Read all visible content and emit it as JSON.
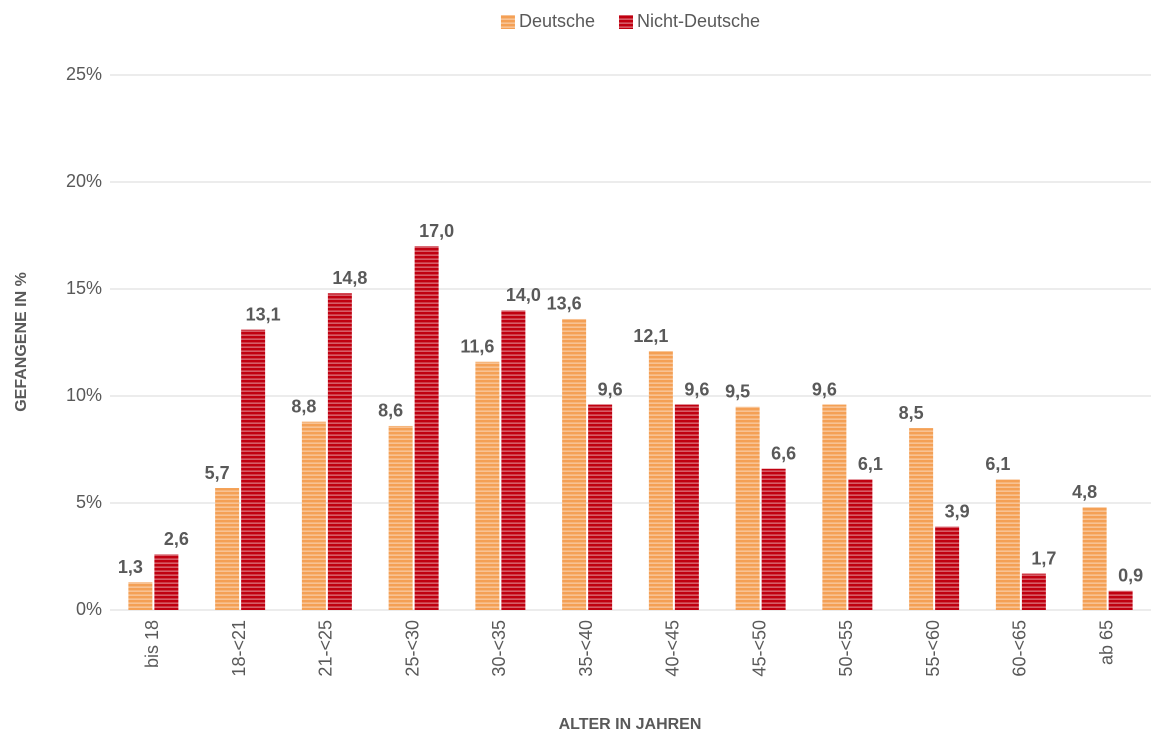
{
  "chart_data": {
    "type": "bar",
    "categories": [
      "bis 18",
      "18-<21",
      "21-<25",
      "25-<30",
      "30-<35",
      "35-<40",
      "40-<45",
      "45-<50",
      "50-<55",
      "55-<60",
      "60-<65",
      "ab 65"
    ],
    "series": [
      {
        "name": "Deutsche",
        "color": "#f4a055",
        "values": [
          1.3,
          5.7,
          8.8,
          8.6,
          11.6,
          13.6,
          12.1,
          9.5,
          9.6,
          8.5,
          6.1,
          4.8
        ],
        "value_labels": [
          "1,3",
          "5,7",
          "8,8",
          "8,6",
          "11,6",
          "13,6",
          "12,1",
          "9,5",
          "9,6",
          "8,5",
          "6,1",
          "4,8"
        ]
      },
      {
        "name": "Nicht-Deutsche",
        "color": "#c00010",
        "values": [
          2.6,
          13.1,
          14.8,
          17.0,
          14.0,
          9.6,
          9.6,
          6.6,
          6.1,
          3.9,
          1.7,
          0.9
        ],
        "value_labels": [
          "2,6",
          "13,1",
          "14,8",
          "17,0",
          "14,0",
          "9,6",
          "9,6",
          "6,6",
          "6,1",
          "3,9",
          "1,7",
          "0,9"
        ]
      }
    ],
    "ylabel": "GEFANGENE IN  %",
    "xlabel": "ALTER IN JAHREN",
    "ylim": [
      0,
      25
    ],
    "yticks": [
      {
        "value": 0,
        "label": "0%"
      },
      {
        "value": 5,
        "label": "5%"
      },
      {
        "value": 10,
        "label": "10%"
      },
      {
        "value": 15,
        "label": "15%"
      },
      {
        "value": 20,
        "label": "20%"
      },
      {
        "value": 25,
        "label": "25%"
      }
    ],
    "grid": true,
    "legend": "top"
  }
}
